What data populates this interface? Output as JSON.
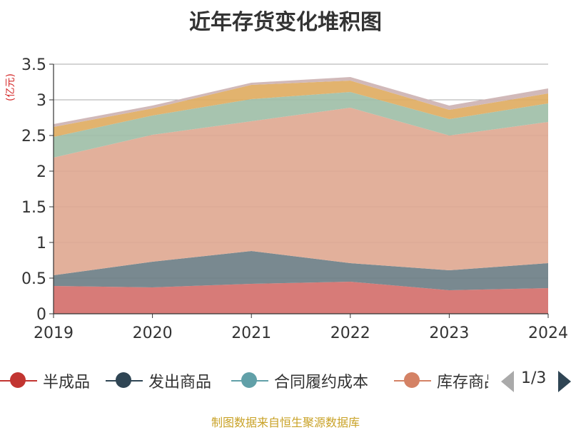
{
  "title": "近年存货变化堆积图",
  "unit": "(亿元)",
  "source": "制图数据来自恒生聚源数据库",
  "pager": {
    "text": "1/3"
  },
  "legend": [
    {
      "label": "半成品",
      "color": "#c23531"
    },
    {
      "label": "发出商品",
      "color": "#2f4554"
    },
    {
      "label": "合同履约成本",
      "color": "#61a0a8"
    },
    {
      "label": "库存商品",
      "color": "#d48265"
    }
  ],
  "chart_data": {
    "type": "area",
    "stacked": true,
    "title": "近年存货变化堆积图",
    "ylabel": "(亿元)",
    "x": [
      "2019",
      "2020",
      "2021",
      "2022",
      "2023",
      "2024"
    ],
    "ylim": [
      0,
      3.5
    ],
    "yticks": [
      "0",
      "0.5",
      "1",
      "1.5",
      "2",
      "2.5",
      "3",
      "3.5"
    ],
    "series": [
      {
        "name": "半成品",
        "color": "#d4706c",
        "values": [
          0.39,
          0.37,
          0.42,
          0.45,
          0.33,
          0.36
        ]
      },
      {
        "name": "发出商品",
        "color": "#6e7f87",
        "values": [
          0.15,
          0.36,
          0.46,
          0.26,
          0.28,
          0.35
        ]
      },
      {
        "color": "#e0a992",
        "values": [
          1.65,
          1.78,
          1.82,
          2.18,
          1.89,
          1.98
        ]
      },
      {
        "color": "#9fbfa8",
        "values": [
          0.29,
          0.27,
          0.31,
          0.22,
          0.23,
          0.26
        ]
      },
      {
        "color": "#e0ad62",
        "values": [
          0.14,
          0.1,
          0.2,
          0.16,
          0.13,
          0.14
        ]
      },
      {
        "color": "#cdb3b3",
        "values": [
          0.04,
          0.04,
          0.03,
          0.05,
          0.06,
          0.07
        ]
      }
    ],
    "grid": true
  }
}
